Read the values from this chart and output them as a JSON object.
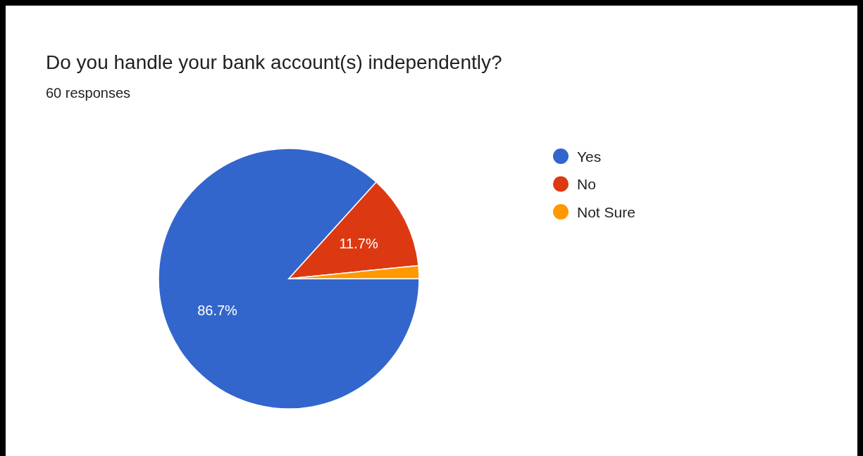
{
  "chart_data": {
    "type": "pie",
    "title": "Do you handle your bank account(s) independently?",
    "subtitle": "60 responses",
    "categories": [
      "Yes",
      "No",
      "Not Sure"
    ],
    "values": [
      86.7,
      11.7,
      1.6
    ],
    "colors": [
      "#3366cc",
      "#dc3912",
      "#ff9900"
    ],
    "value_labels": [
      "86.7%",
      "11.7%",
      null
    ],
    "legend": "top right"
  }
}
